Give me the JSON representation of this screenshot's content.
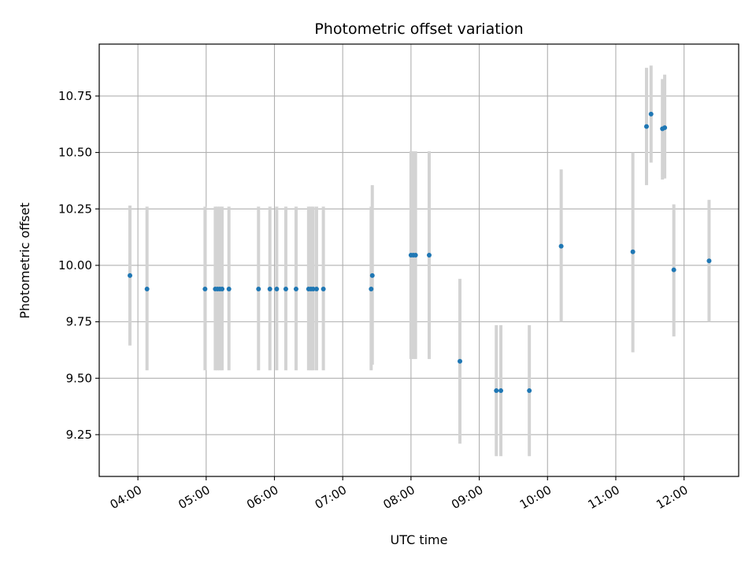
{
  "chart_data": {
    "type": "scatter",
    "title": "Photometric offset variation",
    "xlabel": "UTC time",
    "ylabel": "Photometric offset",
    "xlim": [
      "03:26",
      "12:48"
    ],
    "ylim": [
      9.065,
      10.98
    ],
    "grid": true,
    "x_ticks": [
      "04:00",
      "05:00",
      "06:00",
      "07:00",
      "08:00",
      "09:00",
      "10:00",
      "11:00",
      "12:00"
    ],
    "y_ticks": [
      "9.25",
      "9.50",
      "9.75",
      "10.00",
      "10.25",
      "10.50",
      "10.75"
    ],
    "colors": {
      "point": "#1f77b4",
      "errorbar": "#d3d3d3",
      "grid": "#b0b0b0"
    },
    "points": [
      {
        "x": "03:53",
        "y": 9.955,
        "ylow": 9.645,
        "yhigh": 10.265
      },
      {
        "x": "04:08",
        "y": 9.895,
        "ylow": 9.535,
        "yhigh": 10.26
      },
      {
        "x": "04:59",
        "y": 9.895,
        "ylow": 9.535,
        "yhigh": 10.26
      },
      {
        "x": "05:08",
        "y": 9.895,
        "ylow": 9.535,
        "yhigh": 10.26
      },
      {
        "x": "05:10",
        "y": 9.895,
        "ylow": 9.535,
        "yhigh": 10.26
      },
      {
        "x": "05:12",
        "y": 9.895,
        "ylow": 9.535,
        "yhigh": 10.26
      },
      {
        "x": "05:14",
        "y": 9.895,
        "ylow": 9.535,
        "yhigh": 10.26
      },
      {
        "x": "05:20",
        "y": 9.895,
        "ylow": 9.535,
        "yhigh": 10.26
      },
      {
        "x": "05:46",
        "y": 9.895,
        "ylow": 9.535,
        "yhigh": 10.26
      },
      {
        "x": "05:56",
        "y": 9.895,
        "ylow": 9.535,
        "yhigh": 10.26
      },
      {
        "x": "06:02",
        "y": 9.895,
        "ylow": 9.535,
        "yhigh": 10.26
      },
      {
        "x": "06:10",
        "y": 9.895,
        "ylow": 9.535,
        "yhigh": 10.26
      },
      {
        "x": "06:19",
        "y": 9.895,
        "ylow": 9.535,
        "yhigh": 10.26
      },
      {
        "x": "06:30",
        "y": 9.895,
        "ylow": 9.535,
        "yhigh": 10.26
      },
      {
        "x": "06:32",
        "y": 9.895,
        "ylow": 9.535,
        "yhigh": 10.26
      },
      {
        "x": "06:34",
        "y": 9.895,
        "ylow": 9.535,
        "yhigh": 10.26
      },
      {
        "x": "06:37",
        "y": 9.895,
        "ylow": 9.535,
        "yhigh": 10.26
      },
      {
        "x": "06:43",
        "y": 9.895,
        "ylow": 9.535,
        "yhigh": 10.26
      },
      {
        "x": "07:25",
        "y": 9.895,
        "ylow": 9.535,
        "yhigh": 10.26
      },
      {
        "x": "07:26",
        "y": 9.955,
        "ylow": 9.56,
        "yhigh": 10.355
      },
      {
        "x": "08:00",
        "y": 10.045,
        "ylow": 9.585,
        "yhigh": 10.505
      },
      {
        "x": "08:02",
        "y": 10.045,
        "ylow": 9.585,
        "yhigh": 10.505
      },
      {
        "x": "08:04",
        "y": 10.045,
        "ylow": 9.585,
        "yhigh": 10.505
      },
      {
        "x": "08:16",
        "y": 10.045,
        "ylow": 9.585,
        "yhigh": 10.505
      },
      {
        "x": "08:43",
        "y": 9.575,
        "ylow": 9.21,
        "yhigh": 9.94
      },
      {
        "x": "09:15",
        "y": 9.445,
        "ylow": 9.155,
        "yhigh": 9.735
      },
      {
        "x": "09:19",
        "y": 9.445,
        "ylow": 9.155,
        "yhigh": 9.735
      },
      {
        "x": "09:44",
        "y": 9.445,
        "ylow": 9.155,
        "yhigh": 9.735
      },
      {
        "x": "10:12",
        "y": 10.085,
        "ylow": 9.75,
        "yhigh": 10.425
      },
      {
        "x": "11:15",
        "y": 10.06,
        "ylow": 9.615,
        "yhigh": 10.5
      },
      {
        "x": "11:27",
        "y": 10.615,
        "ylow": 10.355,
        "yhigh": 10.875
      },
      {
        "x": "11:31",
        "y": 10.67,
        "ylow": 10.455,
        "yhigh": 10.885
      },
      {
        "x": "11:41",
        "y": 10.605,
        "ylow": 10.38,
        "yhigh": 10.825
      },
      {
        "x": "11:43",
        "y": 10.61,
        "ylow": 10.385,
        "yhigh": 10.845
      },
      {
        "x": "11:51",
        "y": 9.98,
        "ylow": 9.685,
        "yhigh": 10.27
      },
      {
        "x": "12:22",
        "y": 10.02,
        "ylow": 9.75,
        "yhigh": 10.29
      }
    ]
  }
}
